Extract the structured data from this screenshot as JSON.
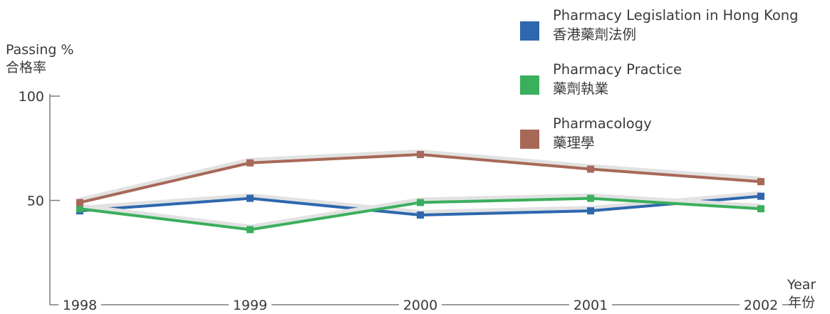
{
  "axis_labels": {
    "y_en": "Passing %",
    "y_zh": "合格率",
    "x_en": "Year",
    "x_zh": "年份"
  },
  "colors": {
    "axis": "#7a7a7a",
    "text": "#3a3a3a"
  },
  "chart_data": {
    "type": "line",
    "title": "",
    "xlabel": "Year 年份",
    "ylabel": "Passing % 合格率",
    "x": [
      "1998",
      "1999",
      "2000",
      "2001",
      "2002"
    ],
    "y_ticks": [
      50,
      100
    ],
    "ylim": [
      0,
      100
    ],
    "grid": false,
    "legend_placement": "top-right",
    "series": [
      {
        "name_en": "Pharmacy Legislation in Hong Kong",
        "name_zh": "香港藥劑法例",
        "color": "#2e67ad",
        "values": [
          45,
          51,
          43,
          45,
          52
        ]
      },
      {
        "name_en": "Pharmacy Practice",
        "name_zh": "藥劑執業",
        "color": "#3aaf5c",
        "values": [
          46,
          36,
          49,
          51,
          46
        ]
      },
      {
        "name_en": "Pharmacology",
        "name_zh": "藥理學",
        "color": "#a86858",
        "values": [
          49,
          68,
          72,
          65,
          59
        ]
      }
    ]
  }
}
